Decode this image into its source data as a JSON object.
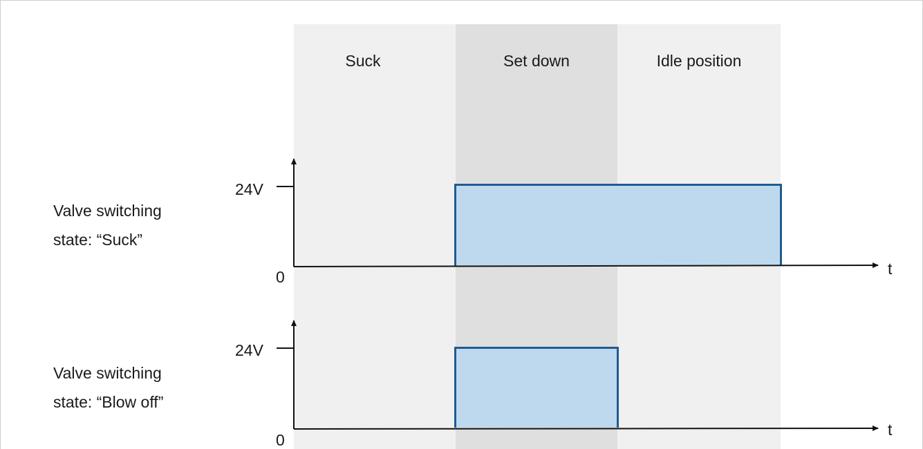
{
  "phases": [
    {
      "label": "Suck"
    },
    {
      "label": "Set down"
    },
    {
      "label": "Idle position"
    }
  ],
  "signals": [
    {
      "label_line1": "Valve switching",
      "label_line2": "state: “Suck”",
      "high_label": "24V",
      "zero_label": "0",
      "axis_label": "t",
      "active_phases": [
        "Set down",
        "Idle position"
      ]
    },
    {
      "label_line1": "Valve switching",
      "label_line2": "state: “Blow off”",
      "high_label": "24V",
      "zero_label": "0",
      "axis_label": "t",
      "active_phases": [
        "Set down"
      ]
    }
  ],
  "colors": {
    "phase_light": "#f0f0f0",
    "phase_dark": "#dfdfdf",
    "pulse_fill": "#bed9ee",
    "pulse_stroke": "#1f5b92"
  }
}
